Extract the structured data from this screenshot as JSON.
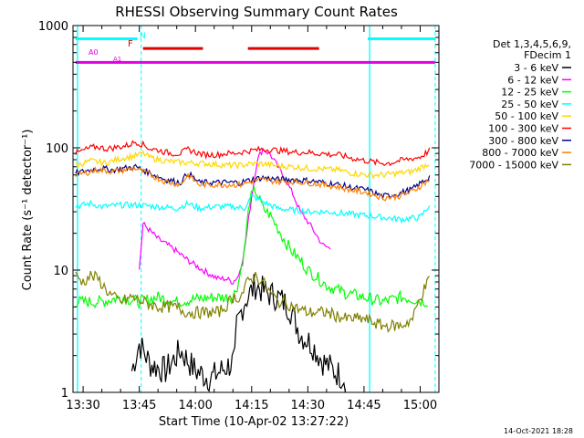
{
  "chart_data": {
    "type": "line",
    "title": "RHESSI Observing Summary Count Rates",
    "xlabel": "Start Time (10-Apr-02 13:27:22)",
    "ylabel": "Count Rate (s⁻¹ detector⁻¹)",
    "x_unit": "minutes after 13:00 UT",
    "xlim": [
      87.3,
      185
    ],
    "ylim": [
      1,
      1000
    ],
    "y_scale": "log",
    "grid": false,
    "x_ticks": [
      {
        "value": 90,
        "label": "13:30"
      },
      {
        "value": 105,
        "label": "13:45"
      },
      {
        "value": 120,
        "label": "14:00"
      },
      {
        "value": 135,
        "label": "14:15"
      },
      {
        "value": 150,
        "label": "14:30"
      },
      {
        "value": 165,
        "label": "14:45"
      },
      {
        "value": 180,
        "label": "15:00"
      }
    ],
    "y_ticks": [
      {
        "value": 1,
        "label": "1"
      },
      {
        "value": 10,
        "label": "10"
      },
      {
        "value": 100,
        "label": "100"
      },
      {
        "value": 1000,
        "label": "1000"
      }
    ],
    "legend": {
      "position": "right",
      "header": [
        "Det 1,3,4,5,6,9,",
        "FDecim 1"
      ]
    },
    "series": [
      {
        "name": "3 - 6 keV",
        "color": "#000000",
        "x": [
          103,
          105,
          108,
          112,
          116,
          120,
          124,
          128,
          130.5,
          131,
          133,
          136,
          139,
          142,
          145,
          148,
          151,
          154,
          157,
          160
        ],
        "y": [
          1.5,
          2.5,
          1.7,
          1.5,
          2.2,
          1.5,
          1.3,
          1.6,
          1.8,
          3.5,
          5.5,
          7.5,
          6.5,
          6.0,
          5.0,
          3.0,
          2.5,
          1.8,
          1.5,
          1.3
        ]
      },
      {
        "name": "6 - 12 keV",
        "color": "#ff00ff",
        "x": [
          105,
          106,
          110,
          114,
          118,
          122,
          126,
          128,
          130,
          131.5,
          133,
          135,
          136.5,
          138,
          140,
          142,
          144,
          146,
          148,
          150,
          152,
          154,
          156
        ],
        "y": [
          10,
          24,
          18,
          15,
          12,
          10,
          8.5,
          8.5,
          8,
          9,
          14,
          40,
          80,
          98,
          88,
          70,
          55,
          42,
          30,
          25,
          20,
          16,
          15
        ]
      },
      {
        "name": "12 - 25 keV",
        "color": "#00ff00",
        "x": [
          88,
          95,
          100,
          105,
          110,
          115,
          120,
          125,
          130,
          131.5,
          133,
          134.5,
          136,
          138,
          140,
          142,
          144,
          146,
          148,
          150,
          152,
          155,
          160,
          165,
          170,
          175,
          182
        ],
        "y": [
          5.5,
          5.5,
          6,
          5.5,
          6,
          5.5,
          5.8,
          6,
          6,
          8,
          14,
          38,
          45,
          32,
          28,
          22,
          17,
          14,
          12,
          10,
          9,
          7.5,
          6.5,
          6,
          5.5,
          6,
          5.5
        ]
      },
      {
        "name": "25 - 50 keV",
        "color": "#00ffff",
        "x": [
          88,
          92,
          95,
          100,
          105,
          110,
          115,
          118,
          121,
          125,
          130,
          133,
          135,
          137,
          139,
          142,
          146,
          150,
          155,
          160,
          165,
          170,
          175,
          180,
          182.5
        ],
        "y": [
          33,
          35,
          33,
          34,
          34,
          33,
          32,
          35,
          32,
          33,
          33,
          32,
          40,
          38,
          35,
          32,
          31,
          30,
          30,
          29,
          28,
          27,
          26,
          27,
          34
        ]
      },
      {
        "name": "50 - 100 keV",
        "color": "#ffd700",
        "x": [
          88,
          92,
          96,
          100,
          104,
          106,
          108,
          112,
          116,
          120,
          124,
          128,
          132,
          135,
          138,
          142,
          146,
          150,
          154,
          158,
          162,
          166,
          170,
          174,
          178,
          182.5
        ],
        "y": [
          72,
          78,
          75,
          82,
          86,
          90,
          83,
          78,
          76,
          75,
          74,
          72,
          72,
          74,
          74,
          71,
          70,
          68,
          67,
          66,
          62,
          60,
          60,
          62,
          64,
          75
        ]
      },
      {
        "name": "100 - 300 keV",
        "color": "#ff0000",
        "x": [
          88,
          90,
          92,
          94,
          96,
          98,
          100,
          102,
          104,
          106,
          108,
          110,
          112,
          114,
          116,
          118,
          120,
          122,
          124,
          126,
          128,
          130,
          132,
          134,
          136,
          138,
          140,
          142,
          144,
          146,
          148,
          150,
          152,
          154,
          156,
          158,
          160,
          162,
          164,
          166,
          168,
          170,
          172,
          174,
          176,
          178,
          180,
          182.5
        ],
        "y": [
          90,
          95,
          100,
          102,
          98,
          100,
          102,
          105,
          112,
          106,
          98,
          96,
          92,
          90,
          90,
          97,
          92,
          88,
          88,
          88,
          90,
          90,
          92,
          94,
          96,
          97,
          97,
          95,
          94,
          92,
          92,
          92,
          90,
          90,
          88,
          88,
          85,
          82,
          80,
          78,
          76,
          75,
          75,
          78,
          80,
          82,
          84,
          95
        ]
      },
      {
        "name": "300 - 800 keV",
        "color": "#00008b",
        "x": [
          88,
          94,
          98,
          104,
          108,
          112,
          116,
          118,
          121,
          124,
          128,
          132,
          135,
          138,
          142,
          146,
          150,
          154,
          158,
          162,
          166,
          170,
          174,
          178,
          182.5
        ],
        "y": [
          62,
          68,
          66,
          70,
          62,
          55,
          52,
          62,
          52,
          52,
          52,
          52,
          55,
          57,
          55,
          55,
          54,
          52,
          50,
          47,
          45,
          40,
          42,
          46,
          58
        ]
      },
      {
        "name": "800 - 7000 keV",
        "color": "#ff8000",
        "x": [
          88,
          94,
          98,
          104,
          108,
          112,
          116,
          118,
          121,
          124,
          128,
          132,
          135,
          138,
          142,
          146,
          150,
          154,
          158,
          162,
          166,
          170,
          174,
          178,
          182.5
        ],
        "y": [
          60,
          66,
          64,
          68,
          60,
          53,
          50,
          60,
          50,
          50,
          50,
          50,
          53,
          55,
          53,
          53,
          52,
          50,
          48,
          45,
          43,
          39,
          40,
          44,
          55
        ]
      },
      {
        "name": "7000 - 15000 keV",
        "color": "#808000",
        "x": [
          88,
          90,
          92,
          94,
          96,
          98,
          100,
          103,
          106,
          110,
          114,
          118,
          122,
          126,
          128,
          130,
          132,
          134,
          136,
          138,
          140,
          142,
          144,
          146,
          150,
          155,
          160,
          165,
          170,
          175,
          178,
          180,
          182.5
        ],
        "y": [
          9,
          8,
          9,
          8.5,
          7,
          6,
          5.5,
          6,
          5.5,
          5,
          5,
          4.5,
          4.5,
          4.5,
          5,
          6,
          6,
          8,
          9,
          8,
          6.5,
          5.5,
          5.5,
          5,
          4.5,
          4.5,
          4,
          4,
          3.5,
          3.5,
          4,
          6,
          8.5
        ]
      }
    ],
    "annotations": {
      "lines": [
        {
          "label": "N",
          "color": "#00ffff",
          "y": 780,
          "segments": [
            [
              88,
              104.5
            ],
            [
              166,
              184
            ]
          ]
        },
        {
          "label": "F",
          "color": "#e00000",
          "y": 650,
          "segments": [
            [
              106,
              122
            ],
            [
              134,
              153
            ]
          ]
        },
        {
          "label": "A0",
          "color": "#e000e0",
          "y": 500,
          "segments": [
            [
              88,
              184
            ]
          ]
        },
        {
          "label": "A1",
          "color": "#e000e0",
          "y": 500,
          "segments": []
        }
      ],
      "vlines_solid": [
        {
          "x": 88.5,
          "color": "#00ffff"
        },
        {
          "x": 166.5,
          "color": "#00ffff"
        }
      ],
      "vlines_dashed": [
        {
          "x": 105.5,
          "color": "#00ffff"
        },
        {
          "x": 184,
          "color": "#00ffff"
        }
      ]
    }
  },
  "footer": {
    "date_stamp": "14-Oct-2021 18:28"
  }
}
